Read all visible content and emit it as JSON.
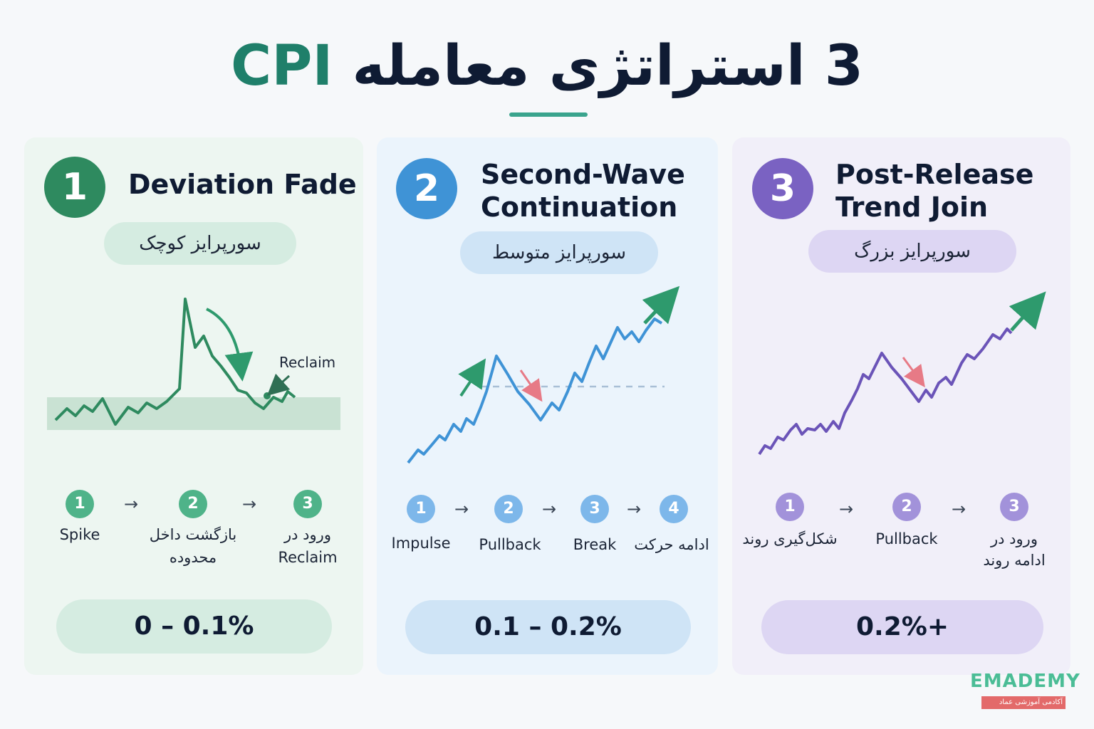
{
  "title": {
    "prefix": "3 استراتژی معامله ",
    "highlight": "CPI"
  },
  "colors": {
    "green": "#2e9a6d",
    "blue": "#3f93d6",
    "purple": "#7a62c2",
    "teal": "#3aa48d"
  },
  "cards": [
    {
      "number": "1",
      "title_line1": "Deviation Fade",
      "title_line2": "",
      "pill": "سورپرایز کوچک",
      "chart_annotation": "Reclaim",
      "steps": [
        {
          "num": "1",
          "label_line1": "Spike",
          "label_line2": ""
        },
        {
          "num": "2",
          "label_line1": "بازگشت داخل",
          "label_line2": "محدوده"
        },
        {
          "num": "3",
          "label_line1": "ورود در",
          "label_line2": "Reclaim"
        }
      ],
      "range": "0 – 0.1%"
    },
    {
      "number": "2",
      "title_line1": "Second-Wave",
      "title_line2": "Continuation",
      "pill": "سورپرایز متوسط",
      "steps": [
        {
          "num": "1",
          "label_line1": "Impulse"
        },
        {
          "num": "2",
          "label_line1": "Pullback"
        },
        {
          "num": "3",
          "label_line1": "Break"
        },
        {
          "num": "4",
          "label_line1": "ادامه حرکت"
        }
      ],
      "range": "0.1 – 0.2%"
    },
    {
      "number": "3",
      "title_line1": "Post-Release",
      "title_line2": "Trend Join",
      "pill": "سورپرایز بزرگ",
      "steps": [
        {
          "num": "1",
          "label_line1": "شکل‌گیری روند",
          "label_line2": ""
        },
        {
          "num": "2",
          "label_line1": "Pullback",
          "label_line2": ""
        },
        {
          "num": "3",
          "label_line1": "ورود در",
          "label_line2": "ادامه روند"
        }
      ],
      "range": "0.2%+"
    }
  ],
  "logo": {
    "name": "EMADEMY",
    "tagline": "آکادمی آموزشی عماد"
  },
  "arrow_glyph": "→"
}
